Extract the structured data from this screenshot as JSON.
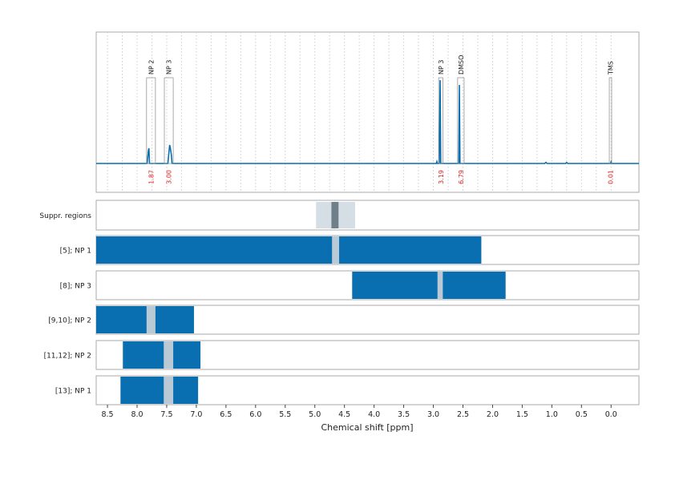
{
  "chart_data": {
    "type": "line",
    "xlabel": "Chemical shift [ppm]",
    "color": "#0a6fb0",
    "xlim": [
      8.69,
      -0.47
    ],
    "xticks": [
      8.5,
      {
        "value": 8,
        "label": "8.0"
      },
      7.5,
      {
        "value": 7,
        "label": "7.0"
      },
      6.5,
      {
        "value": 6,
        "label": "6.0"
      },
      5.5,
      {
        "value": 5,
        "label": "5.0"
      },
      4.5,
      {
        "value": 4,
        "label": "4.0"
      },
      3.5,
      {
        "value": 3,
        "label": "3.0"
      },
      2.5,
      {
        "value": 2,
        "label": "2.0"
      },
      1.5,
      {
        "value": 1,
        "label": "1.0"
      },
      0.5,
      {
        "value": 0,
        "label": "0.0"
      }
    ],
    "minor_xticks": [
      8.25,
      7.75,
      7.25,
      6.75,
      6.25,
      5.75,
      5.25,
      4.75,
      4.25,
      3.75,
      3.25,
      2.75,
      2.25,
      1.75,
      1.25,
      0.75,
      0.25
    ],
    "ylim": [
      -18,
      82
    ],
    "x": [
      8.69,
      7.83,
      7.81,
      7.8,
      7.79,
      7.48,
      7.46,
      7.45,
      7.44,
      7.42,
      7.41,
      2.95,
      2.94,
      2.93,
      2.9,
      2.885,
      2.875,
      2.57,
      2.56,
      2.55,
      1.12,
      1.1,
      1.08,
      0.77,
      0.75,
      0.73,
      0.01,
      0,
      -0.01,
      -0.47
    ],
    "values": [
      0,
      0,
      8,
      9.5,
      0,
      0,
      8,
      11.5,
      10,
      5,
      0,
      0,
      1.2,
      0,
      0,
      52,
      0,
      0,
      49,
      0,
      0,
      0.7,
      0,
      0,
      0.6,
      0,
      0,
      1,
      0,
      0
    ],
    "peaks": [
      {
        "label": "NP 2",
        "integral": "1.87",
        "range": [
          7.84,
          7.69
        ]
      },
      {
        "label": "NP 3",
        "integral": "3.00",
        "range": [
          7.54,
          7.39
        ]
      },
      {
        "label": "NP 3",
        "integral": "3.19",
        "range": [
          2.91,
          2.84
        ]
      },
      {
        "label": "DMSO",
        "integral": "6.79",
        "range": [
          2.59,
          2.48
        ]
      },
      {
        "label": "TMS",
        "integral": "0.01",
        "range": [
          0.03,
          -0.01
        ]
      }
    ],
    "suppression": {
      "label": "Suppr. regions",
      "outer": [
        4.98,
        4.32
      ],
      "inner": [
        4.72,
        4.6
      ]
    },
    "tracks": [
      {
        "label": "[5]; NP 1",
        "range": [
          8.69,
          2.19
        ],
        "excluded": [
          4.71,
          4.59
        ]
      },
      {
        "label": "[8]; NP 3",
        "range": [
          4.37,
          1.78
        ],
        "excluded": [
          2.93,
          2.84
        ]
      },
      {
        "label": "[9,10]; NP 2",
        "range": [
          8.69,
          7.04
        ],
        "excluded": [
          7.84,
          7.69
        ]
      },
      {
        "label": "[11,12]; NP 2",
        "range": [
          8.24,
          6.93
        ],
        "excluded": [
          7.55,
          7.39
        ]
      },
      {
        "label": "[13]; NP 1",
        "range": [
          8.28,
          6.97
        ],
        "excluded": [
          7.55,
          7.39
        ]
      }
    ]
  }
}
